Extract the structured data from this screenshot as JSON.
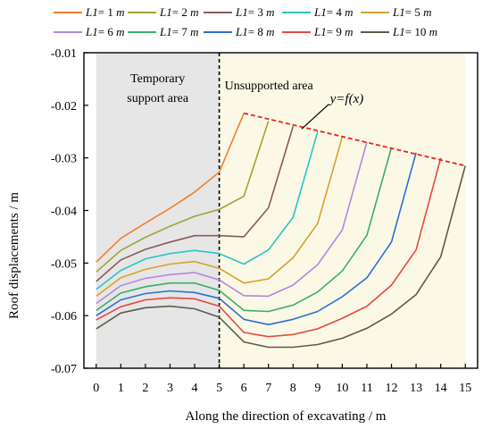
{
  "chart_data": {
    "type": "line",
    "xlabel": "Along the direction of excavating / m",
    "ylabel": "Roof displacements / m",
    "xlim": [
      -0.5,
      15.5
    ],
    "ylim": [
      -0.07,
      -0.01
    ],
    "x_ticks": [
      "0",
      "1",
      "2",
      "3",
      "4",
      "5",
      "6",
      "7",
      "8",
      "9",
      "10",
      "11",
      "12",
      "13",
      "14",
      "15"
    ],
    "y_ticks": [
      {
        "value": -0.01,
        "label": "-0.01"
      },
      {
        "value": -0.02,
        "label": "-0.02"
      },
      {
        "value": -0.03,
        "label": "-0.03"
      },
      {
        "value": -0.04,
        "label": "-0.04"
      },
      {
        "value": -0.05,
        "label": "-0.05"
      },
      {
        "value": -0.06,
        "label": "-0.06"
      },
      {
        "value": -0.07,
        "label": "-0.07"
      }
    ],
    "grid": false,
    "legend_position": "top",
    "regions": [
      {
        "label_lines": [
          "Temporary",
          "support area"
        ],
        "x_from": 0,
        "x_to": 5,
        "color": "#e6e6e6"
      },
      {
        "label_lines": [
          "Unsupported area"
        ],
        "x_from": 5,
        "x_to": 15,
        "color": "#fbf8e6"
      }
    ],
    "annotation": {
      "text": "y=f(x)",
      "line_x": [
        6,
        15
      ],
      "line_y": [
        -0.0215,
        -0.0315
      ],
      "line_color": "#e8251f"
    },
    "series": [
      {
        "name": "L1= 1 m",
        "color": "#f07f2d",
        "x": [
          0,
          1,
          2,
          3,
          4,
          5,
          6
        ],
        "y": [
          -0.0498,
          -0.0453,
          -0.0424,
          -0.0396,
          -0.0365,
          -0.0327,
          -0.0215
        ]
      },
      {
        "name": "L1= 2 m",
        "color": "#a1a532",
        "x": [
          0,
          1,
          2,
          3,
          4,
          5,
          6,
          7
        ],
        "y": [
          -0.0517,
          -0.0476,
          -0.0451,
          -0.043,
          -0.0411,
          -0.0398,
          -0.0373,
          -0.023
        ]
      },
      {
        "name": "L1= 3 m",
        "color": "#8a5a5a",
        "x": [
          0,
          1,
          2,
          3,
          4,
          5,
          6,
          7,
          8
        ],
        "y": [
          -0.0535,
          -0.0494,
          -0.0474,
          -0.046,
          -0.0448,
          -0.0448,
          -0.045,
          -0.0395,
          -0.024
        ]
      },
      {
        "name": "L1= 4 m",
        "color": "#29c6c6",
        "x": [
          0,
          1,
          2,
          3,
          4,
          5,
          6,
          7,
          8,
          9
        ],
        "y": [
          -0.055,
          -0.0514,
          -0.0492,
          -0.0482,
          -0.0476,
          -0.0482,
          -0.0502,
          -0.0475,
          -0.0413,
          -0.025
        ]
      },
      {
        "name": "L1= 5 m",
        "color": "#d9a12c",
        "x": [
          0,
          1,
          2,
          3,
          4,
          5,
          6,
          7,
          8,
          9,
          10
        ],
        "y": [
          -0.0563,
          -0.0528,
          -0.0512,
          -0.0502,
          -0.0497,
          -0.051,
          -0.0538,
          -0.053,
          -0.049,
          -0.0425,
          -0.026
        ]
      },
      {
        "name": "L1= 6 m",
        "color": "#b388e0",
        "x": [
          0,
          1,
          2,
          3,
          4,
          5,
          6,
          7,
          8,
          9,
          10,
          11
        ],
        "y": [
          -0.0577,
          -0.0543,
          -0.0529,
          -0.0522,
          -0.0518,
          -0.0532,
          -0.0562,
          -0.0563,
          -0.0542,
          -0.0503,
          -0.0437,
          -0.027
        ]
      },
      {
        "name": "L1= 7 m",
        "color": "#3aae6a",
        "x": [
          0,
          1,
          2,
          3,
          4,
          5,
          6,
          7,
          8,
          9,
          10,
          11,
          12
        ],
        "y": [
          -0.059,
          -0.0557,
          -0.0545,
          -0.0538,
          -0.0538,
          -0.0552,
          -0.059,
          -0.0592,
          -0.058,
          -0.0555,
          -0.0515,
          -0.0447,
          -0.028
        ]
      },
      {
        "name": "L1= 8 m",
        "color": "#2e6fd1",
        "x": [
          0,
          1,
          2,
          3,
          4,
          5,
          6,
          7,
          8,
          9,
          10,
          11,
          12,
          13
        ],
        "y": [
          -0.06,
          -0.057,
          -0.0558,
          -0.0553,
          -0.0556,
          -0.0567,
          -0.0607,
          -0.0617,
          -0.0607,
          -0.0592,
          -0.0564,
          -0.0528,
          -0.046,
          -0.029
        ]
      },
      {
        "name": "L1= 9 m",
        "color": "#e5493e",
        "x": [
          0,
          1,
          2,
          3,
          4,
          5,
          6,
          7,
          8,
          9,
          10,
          11,
          12,
          13,
          14
        ],
        "y": [
          -0.0608,
          -0.0583,
          -0.057,
          -0.0566,
          -0.0568,
          -0.0582,
          -0.0632,
          -0.064,
          -0.0636,
          -0.0625,
          -0.0605,
          -0.0582,
          -0.0542,
          -0.0475,
          -0.03
        ]
      },
      {
        "name": "L1= 10 m",
        "color": "#5c5c4c",
        "x": [
          0,
          1,
          2,
          3,
          4,
          5,
          6,
          7,
          8,
          9,
          10,
          11,
          12,
          13,
          14,
          15
        ],
        "y": [
          -0.0625,
          -0.0595,
          -0.0585,
          -0.0582,
          -0.0587,
          -0.0603,
          -0.065,
          -0.066,
          -0.066,
          -0.0655,
          -0.0643,
          -0.0624,
          -0.0597,
          -0.056,
          -0.0488,
          -0.0315
        ]
      }
    ]
  }
}
